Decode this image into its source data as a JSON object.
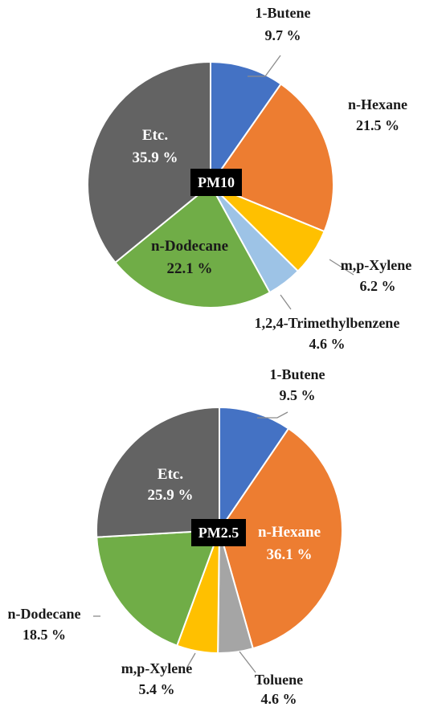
{
  "chart_data": [
    {
      "type": "pie",
      "center_label": "PM10",
      "slices": [
        {
          "label": "1-Butene",
          "value_text": "9.7 %",
          "value": 9.7,
          "color": "#4472C4"
        },
        {
          "label": "n-Hexane",
          "value_text": "21.5 %",
          "value": 21.5,
          "color": "#ED7D31"
        },
        {
          "label": "m,p-Xylene",
          "value_text": "6.2 %",
          "value": 6.2,
          "color": "#FFC000"
        },
        {
          "label": "1,2,4-Trimethylbenzene",
          "value_text": "4.6 %",
          "value": 4.6,
          "color": "#9DC3E6"
        },
        {
          "label": "n-Dodecane",
          "value_text": "22.1 %",
          "value": 22.1,
          "color": "#70AD47"
        },
        {
          "label": "Etc.",
          "value_text": "35.9 %",
          "value": 35.9,
          "color": "#636363"
        }
      ]
    },
    {
      "type": "pie",
      "center_label": "PM2.5",
      "slices": [
        {
          "label": "1-Butene",
          "value_text": "9.5 %",
          "value": 9.5,
          "color": "#4472C4"
        },
        {
          "label": "n-Hexane",
          "value_text": "36.1 %",
          "value": 36.1,
          "color": "#ED7D31"
        },
        {
          "label": "Toluene",
          "value_text": "4.6 %",
          "value": 4.6,
          "color": "#A5A5A5"
        },
        {
          "label": "m,p-Xylene",
          "value_text": "5.4 %",
          "value": 5.4,
          "color": "#FFC000"
        },
        {
          "label": "n-Dodecane",
          "value_text": "18.5 %",
          "value": 18.5,
          "color": "#70AD47"
        },
        {
          "label": "Etc.",
          "value_text": "25.9 %",
          "value": 25.9,
          "color": "#636363"
        }
      ]
    }
  ]
}
